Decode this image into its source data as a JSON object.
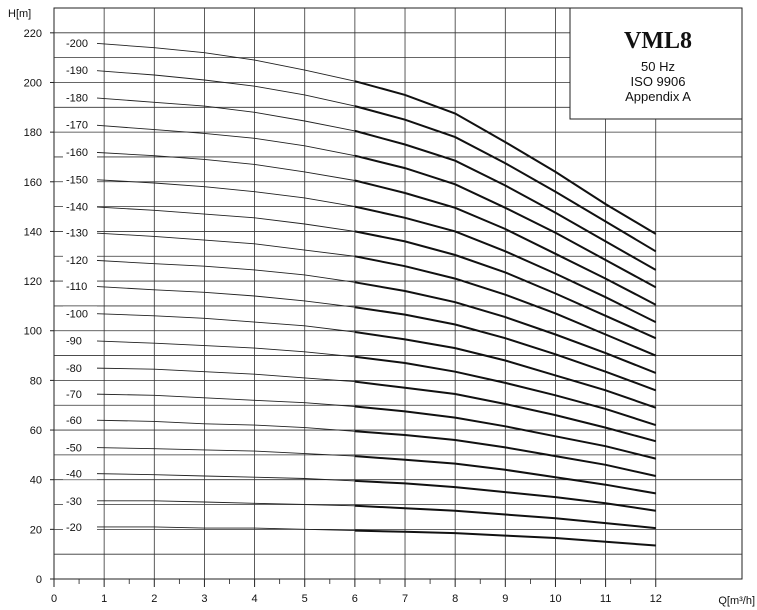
{
  "chart_data": {
    "type": "line",
    "title": "VML8",
    "subtitle_lines": [
      "50 Hz",
      "ISO 9906",
      "Appendix A"
    ],
    "xlabel": "Q[m³/h]",
    "ylabel": "H[m]",
    "xlim": [
      0,
      12
    ],
    "ylim": [
      0,
      230
    ],
    "x_ticks": [
      0,
      1,
      2,
      3,
      4,
      5,
      6,
      7,
      8,
      9,
      10,
      11,
      12
    ],
    "y_ticks": [
      0,
      20,
      40,
      60,
      80,
      100,
      120,
      140,
      160,
      180,
      200,
      220
    ],
    "grid": true,
    "legend_placement": "top-right",
    "series": [
      {
        "name": "-200",
        "x": [
          0.7,
          2,
          3,
          4,
          5,
          6,
          7,
          8,
          9,
          10,
          11,
          12
        ],
        "y": [
          216,
          214,
          212,
          209,
          205,
          200.5,
          195,
          187.5,
          176,
          164,
          151,
          139
        ]
      },
      {
        "name": "-190",
        "x": [
          0.7,
          2,
          3,
          4,
          5,
          6,
          7,
          8,
          9,
          10,
          11,
          12
        ],
        "y": [
          205,
          203,
          201,
          198.5,
          195,
          190.5,
          185,
          178,
          167.5,
          156,
          144,
          132
        ]
      },
      {
        "name": "-180",
        "x": [
          0.7,
          2,
          3,
          4,
          5,
          6,
          7,
          8,
          9,
          10,
          11,
          12
        ],
        "y": [
          194,
          192,
          190.5,
          188,
          184.5,
          180.5,
          175,
          168.5,
          158.5,
          147.5,
          136,
          124.5
        ]
      },
      {
        "name": "-170",
        "x": [
          0.7,
          2,
          3,
          4,
          5,
          6,
          7,
          8,
          9,
          10,
          11,
          12
        ],
        "y": [
          183,
          181,
          179.5,
          177.5,
          174.5,
          170.5,
          165.5,
          159,
          149.5,
          139.5,
          128.5,
          117.5
        ]
      },
      {
        "name": "-160",
        "x": [
          0.7,
          2,
          3,
          4,
          5,
          6,
          7,
          8,
          9,
          10,
          11,
          12
        ],
        "y": [
          172,
          170.5,
          169,
          167,
          164,
          160.5,
          155.5,
          149.5,
          141,
          131,
          121,
          110.5
        ]
      },
      {
        "name": "-150",
        "x": [
          0.7,
          2,
          3,
          4,
          5,
          6,
          7,
          8,
          9,
          10,
          11,
          12
        ],
        "y": [
          161,
          159.5,
          158,
          156,
          153.5,
          150,
          145.5,
          140,
          132,
          123,
          113.5,
          103.5
        ]
      },
      {
        "name": "-140",
        "x": [
          0.7,
          2,
          3,
          4,
          5,
          6,
          7,
          8,
          9,
          10,
          11,
          12
        ],
        "y": [
          150,
          148.5,
          147,
          145.5,
          143,
          140,
          136,
          130.5,
          123.5,
          115,
          106,
          97
        ]
      },
      {
        "name": "-130",
        "x": [
          0.7,
          2,
          3,
          4,
          5,
          6,
          7,
          8,
          9,
          10,
          11,
          12
        ],
        "y": [
          139.5,
          138,
          136.5,
          135,
          132.5,
          130,
          126,
          121,
          114.5,
          107,
          98.5,
          90
        ]
      },
      {
        "name": "-120",
        "x": [
          0.7,
          2,
          3,
          4,
          5,
          6,
          7,
          8,
          9,
          10,
          11,
          12
        ],
        "y": [
          128.5,
          127,
          126,
          124.5,
          122.5,
          119.5,
          116,
          111.5,
          105.5,
          98.5,
          91,
          83
        ]
      },
      {
        "name": "-110",
        "x": [
          0.7,
          2,
          3,
          4,
          5,
          6,
          7,
          8,
          9,
          10,
          11,
          12
        ],
        "y": [
          118,
          116.5,
          115.5,
          114,
          112,
          109.5,
          106.5,
          102.5,
          97,
          90.5,
          83.5,
          76
        ]
      },
      {
        "name": "-100",
        "x": [
          0.7,
          2,
          3,
          4,
          5,
          6,
          7,
          8,
          9,
          10,
          11,
          12
        ],
        "y": [
          107,
          106,
          105,
          103.5,
          102,
          99.5,
          96.5,
          93,
          88,
          82,
          76,
          69
        ]
      },
      {
        "name": "-90",
        "x": [
          0.7,
          2,
          3,
          4,
          5,
          6,
          7,
          8,
          9,
          10,
          11,
          12
        ],
        "y": [
          96,
          95,
          94,
          93,
          91.5,
          89.5,
          87,
          83.5,
          79,
          74,
          68.5,
          62
        ]
      },
      {
        "name": "-80",
        "x": [
          0.7,
          2,
          3,
          4,
          5,
          6,
          7,
          8,
          9,
          10,
          11,
          12
        ],
        "y": [
          85,
          84.5,
          83.5,
          82.5,
          81,
          79.5,
          77,
          74.5,
          70.5,
          66,
          61,
          55.5
        ]
      },
      {
        "name": "-70",
        "x": [
          0.7,
          2,
          3,
          4,
          5,
          6,
          7,
          8,
          9,
          10,
          11,
          12
        ],
        "y": [
          74.5,
          74,
          73,
          72,
          71,
          69.5,
          67.5,
          65,
          61.5,
          57.5,
          53.5,
          48.5
        ]
      },
      {
        "name": "-60",
        "x": [
          0.7,
          2,
          3,
          4,
          5,
          6,
          7,
          8,
          9,
          10,
          11,
          12
        ],
        "y": [
          64,
          63.5,
          62.5,
          62,
          61,
          59.5,
          58,
          56,
          53,
          49.5,
          46,
          41.5
        ]
      },
      {
        "name": "-50",
        "x": [
          0.7,
          2,
          3,
          4,
          5,
          6,
          7,
          8,
          9,
          10,
          11,
          12
        ],
        "y": [
          53,
          52.5,
          52,
          51.5,
          50.5,
          49.5,
          48,
          46.5,
          44,
          41,
          38,
          34.5
        ]
      },
      {
        "name": "-40",
        "x": [
          0.7,
          2,
          3,
          4,
          5,
          6,
          7,
          8,
          9,
          10,
          11,
          12
        ],
        "y": [
          42.5,
          42,
          41.5,
          41,
          40.5,
          39.5,
          38.5,
          37,
          35,
          33,
          30.5,
          27.5
        ]
      },
      {
        "name": "-30",
        "x": [
          0.7,
          2,
          3,
          4,
          5,
          6,
          7,
          8,
          9,
          10,
          11,
          12
        ],
        "y": [
          31.5,
          31.5,
          31,
          30.5,
          30,
          29.5,
          28.5,
          27.5,
          26,
          24.5,
          22.5,
          20.5
        ]
      },
      {
        "name": "-20",
        "x": [
          0.7,
          2,
          3,
          4,
          5,
          6,
          7,
          8,
          9,
          10,
          11,
          12
        ],
        "y": [
          21,
          21,
          20.5,
          20.5,
          20,
          19.5,
          19,
          18.5,
          17.5,
          16.5,
          15,
          13.5
        ]
      }
    ]
  }
}
